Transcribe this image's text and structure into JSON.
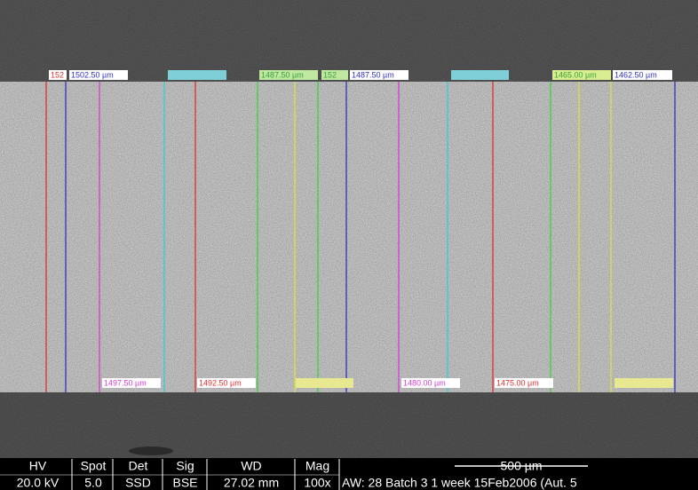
{
  "measurements": {
    "top": [
      "152",
      "1502.50 µm",
      "1487.50 µm",
      "152",
      "1487.50 µm",
      "1465.00 µm",
      "1462.50 µm"
    ],
    "bottom": [
      "1497.50 µm",
      "1492.50 µm",
      "1480.00 µm",
      "1475.00 µm"
    ]
  },
  "info_bar": {
    "headers": [
      "HV",
      "Spot",
      "Det",
      "Sig",
      "WD",
      "Mag"
    ],
    "values": [
      "20.0 kV",
      "5.0",
      "SSD",
      "BSE",
      "27.02 mm",
      "100x"
    ],
    "scale_bar": "500 µm",
    "description": "AW: 28 Batch 3 1 week 15Feb2006 (Aut. 5"
  }
}
